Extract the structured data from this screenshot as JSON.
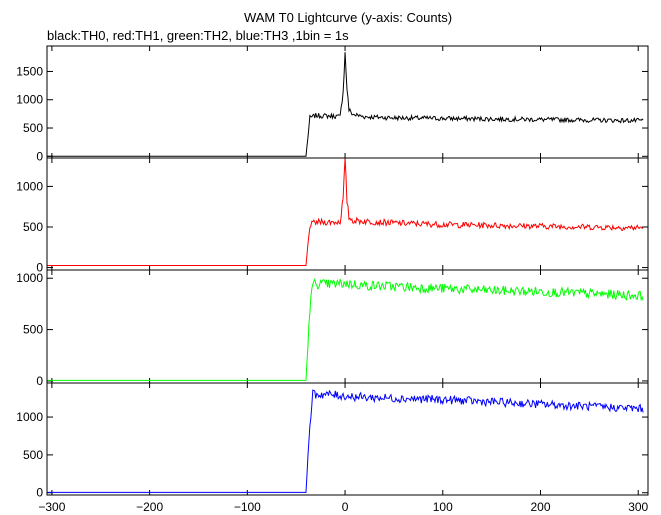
{
  "title": "WAM T0 Lightcurve (y-axis: Counts)",
  "subtitle": "black:TH0, red:TH1, green:TH2, blue:TH3 ,1bin = 1s",
  "chart_data": {
    "type": "line",
    "x_axis": {
      "range": [
        -305,
        310
      ],
      "ticks": [
        -300,
        -200,
        -100,
        0,
        100,
        200,
        300
      ]
    },
    "panels": [
      {
        "name": "TH0",
        "color": "#000000",
        "ylim": [
          -30,
          1950
        ],
        "yticks": [
          0,
          500,
          1000,
          1500
        ],
        "points": [
          [
            -305,
            2
          ],
          [
            -40,
            2
          ],
          [
            -36,
            680
          ],
          [
            -30,
            720
          ],
          [
            -10,
            710
          ],
          [
            -5,
            700
          ],
          [
            -2,
            1150
          ],
          [
            0,
            1820
          ],
          [
            2,
            1200
          ],
          [
            4,
            820
          ],
          [
            8,
            740
          ],
          [
            20,
            700
          ],
          [
            50,
            680
          ],
          [
            100,
            670
          ],
          [
            150,
            660
          ],
          [
            200,
            650
          ],
          [
            250,
            640
          ],
          [
            305,
            630
          ]
        ]
      },
      {
        "name": "TH1",
        "color": "#ff0000",
        "ylim": [
          -30,
          1350
        ],
        "yticks": [
          0,
          500,
          1000
        ],
        "points": [
          [
            -305,
            25
          ],
          [
            -40,
            25
          ],
          [
            -36,
            520
          ],
          [
            -30,
            560
          ],
          [
            -10,
            560
          ],
          [
            -5,
            565
          ],
          [
            -2,
            850
          ],
          [
            0,
            1320
          ],
          [
            2,
            820
          ],
          [
            4,
            620
          ],
          [
            8,
            580
          ],
          [
            20,
            570
          ],
          [
            50,
            550
          ],
          [
            100,
            530
          ],
          [
            150,
            520
          ],
          [
            200,
            510
          ],
          [
            250,
            500
          ],
          [
            305,
            490
          ]
        ]
      },
      {
        "name": "TH2",
        "color": "#00ff00",
        "ylim": [
          -20,
          1080
        ],
        "yticks": [
          0,
          500,
          1000
        ],
        "points": [
          [
            -305,
            5
          ],
          [
            -40,
            5
          ],
          [
            -36,
            700
          ],
          [
            -33,
            950
          ],
          [
            -20,
            940
          ],
          [
            0,
            950
          ],
          [
            20,
            930
          ],
          [
            50,
            920
          ],
          [
            100,
            900
          ],
          [
            150,
            880
          ],
          [
            200,
            870
          ],
          [
            250,
            850
          ],
          [
            305,
            830
          ]
        ]
      },
      {
        "name": "TH3",
        "color": "#0000ff",
        "ylim": [
          -30,
          1450
        ],
        "yticks": [
          0,
          500,
          1000
        ],
        "points": [
          [
            -305,
            5
          ],
          [
            -40,
            5
          ],
          [
            -36,
            900
          ],
          [
            -33,
            1300
          ],
          [
            -20,
            1300
          ],
          [
            0,
            1280
          ],
          [
            20,
            1260
          ],
          [
            50,
            1250
          ],
          [
            100,
            1230
          ],
          [
            150,
            1200
          ],
          [
            200,
            1170
          ],
          [
            250,
            1140
          ],
          [
            305,
            1110
          ]
        ]
      }
    ]
  }
}
